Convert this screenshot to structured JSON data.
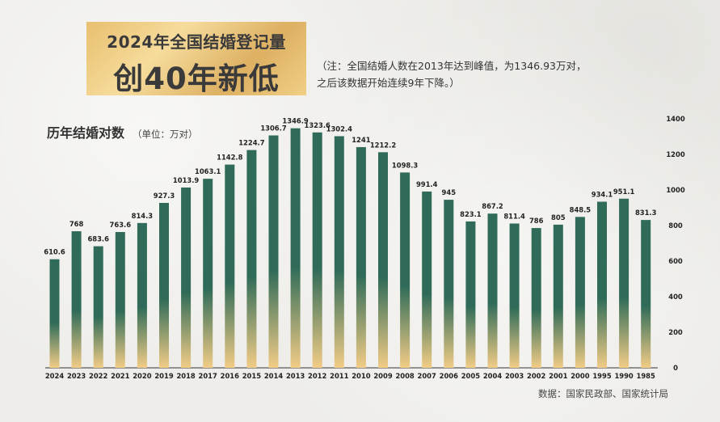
{
  "banner": {
    "line1": "2024年全国结婚登记量",
    "line2": "创40年新低"
  },
  "note": {
    "line1": "（注：全国结婚人数在2013年达到峰值，为1346.93万对，",
    "line2": "之后该数据开始连续9年下降。）"
  },
  "subtitle": {
    "title": "历年结婚对数",
    "unit": "（单位：万对）"
  },
  "source": "数据：国家民政部、国家统计局",
  "colors": {
    "bar_top": "#2f6b58",
    "bar_bottom": "#f2cc86",
    "banner": "#e8bf6f"
  },
  "chart_data": {
    "type": "bar",
    "categories": [
      "2024",
      "2023",
      "2022",
      "2021",
      "2020",
      "2019",
      "2018",
      "2017",
      "2016",
      "2015",
      "2014",
      "2013",
      "2012",
      "2011",
      "2010",
      "2009",
      "2008",
      "2007",
      "2006",
      "2005",
      "2004",
      "2003",
      "2002",
      "2001",
      "2000",
      "1995",
      "1990",
      "1985"
    ],
    "values": [
      610.6,
      768,
      683.6,
      763.6,
      814.3,
      927.3,
      1013.9,
      1063.1,
      1142.8,
      1224.7,
      1306.7,
      1346.9,
      1323.6,
      1302.4,
      1241,
      1212.2,
      1098.3,
      991.4,
      945,
      823.1,
      867.2,
      811.4,
      786,
      805,
      848.5,
      934.1,
      951.1,
      831.3
    ],
    "value_labels": [
      "610.6",
      "768",
      "683.6",
      "763.6",
      "814.3",
      "927.3",
      "1013.9",
      "1063.1",
      "1142.8",
      "1224.7",
      "1306.7",
      "1346.9",
      "1323.6",
      "1302.4",
      "1241",
      "1212.2",
      "1098.3",
      "991.4",
      "945",
      "823.1",
      "867.2",
      "811.4",
      "786",
      "805",
      "848.5",
      "934.1",
      "951.1",
      "831.3"
    ],
    "yticks": [
      "0",
      "200",
      "400",
      "600",
      "800",
      "1000",
      "1200",
      "1400"
    ],
    "ylim": [
      0,
      1400
    ],
    "y_axis_side": "right",
    "grid": false,
    "legend": "none"
  }
}
